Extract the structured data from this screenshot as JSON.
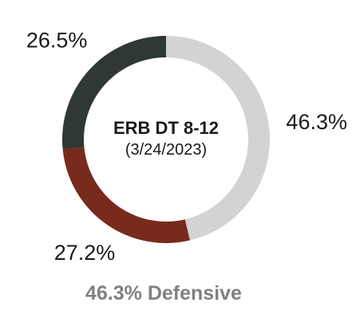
{
  "chart_data": {
    "type": "pie",
    "style": "donut",
    "title": "ERB DT 8-12",
    "subtitle": "(3/24/2023)",
    "categories": [
      "",
      "",
      ""
    ],
    "values": [
      46.3,
      27.2,
      26.5
    ],
    "labels": [
      "46.3%",
      "27.2%",
      "26.5%"
    ],
    "colors": [
      "#d3d3d3",
      "#782a1c",
      "#2f3832"
    ],
    "start_angle": "12 o'clock",
    "direction": "clockwise",
    "legend": "none",
    "caption": "46.3% Defensive"
  }
}
